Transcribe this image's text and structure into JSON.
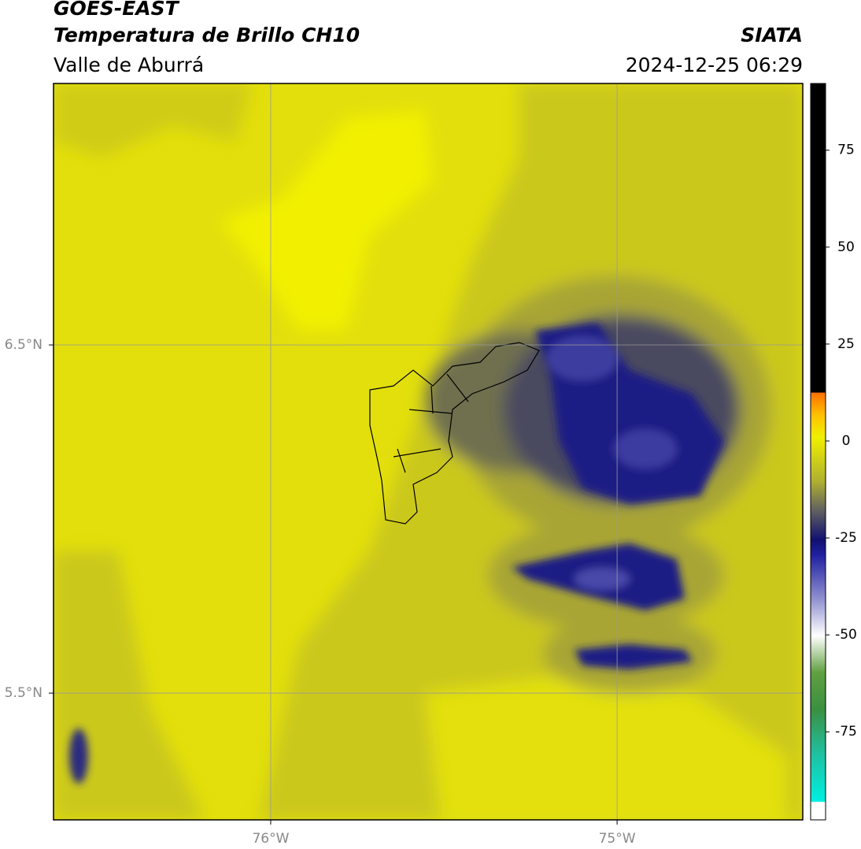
{
  "header": {
    "title": "GOES-EAST",
    "subtitle": "Temperatura de Brillo CH10",
    "region": "Valle de Aburrá",
    "source": "SIATA",
    "timestamp": "2024-12-25 06:29"
  },
  "map": {
    "xlim": [
      -76.627,
      -74.464
    ],
    "ylim": [
      5.136,
      7.251
    ],
    "xticks": [
      {
        "value": -76,
        "label": "76°W"
      },
      {
        "value": -75,
        "label": "75°W"
      }
    ],
    "yticks": [
      {
        "value": 6.5,
        "label": "6.5°N"
      },
      {
        "value": 5.5,
        "label": "5.5°N"
      }
    ],
    "grid": true
  },
  "colorbar": {
    "lim": [
      -97.7,
      92.2
    ],
    "ticks": [
      75,
      50,
      25,
      0,
      -25,
      -50,
      -75
    ]
  }
}
